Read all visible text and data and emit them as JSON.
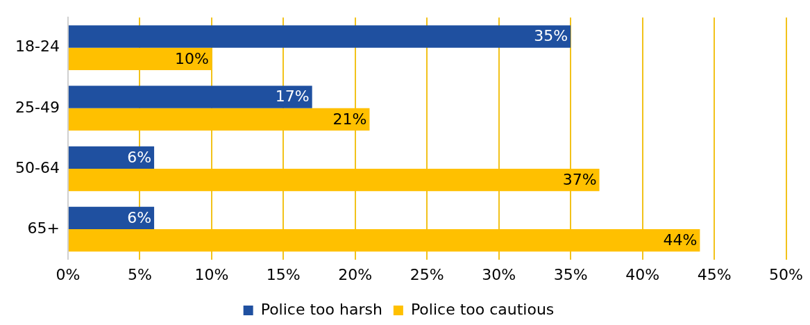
{
  "chart_data": {
    "type": "bar",
    "orientation": "horizontal",
    "categories": [
      "18-24",
      "25-49",
      "50-64",
      "65+"
    ],
    "series": [
      {
        "name": "Police too harsh",
        "color": "#1f50a0",
        "values": [
          35,
          17,
          6,
          6
        ],
        "value_labels": [
          "35%",
          "17%",
          "6%",
          "6%"
        ]
      },
      {
        "name": "Police too cautious",
        "color": "#ffc000",
        "values": [
          10,
          21,
          37,
          44
        ],
        "value_labels": [
          "10%",
          "21%",
          "37%",
          "44%"
        ]
      }
    ],
    "xlim": [
      0,
      50
    ],
    "xticks": [
      {
        "value": 0,
        "label": "0%"
      },
      {
        "value": 5,
        "label": "5%"
      },
      {
        "value": 10,
        "label": "10%"
      },
      {
        "value": 15,
        "label": "15%"
      },
      {
        "value": 20,
        "label": "20%"
      },
      {
        "value": 25,
        "label": "25%"
      },
      {
        "value": 30,
        "label": "30%"
      },
      {
        "value": 35,
        "label": "35%"
      },
      {
        "value": 40,
        "label": "40%"
      },
      {
        "value": 45,
        "label": "45%"
      },
      {
        "value": 50,
        "label": "50%"
      }
    ],
    "grid": "x",
    "legend": "bottom"
  }
}
